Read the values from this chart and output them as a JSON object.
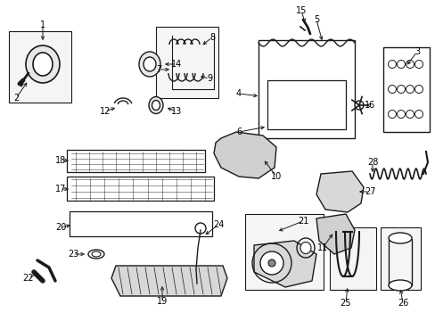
{
  "bg_color": "#ffffff",
  "line_color": "#1a1a1a",
  "text_color": "#000000",
  "fig_width": 4.89,
  "fig_height": 3.6,
  "dpi": 100,
  "font_size": 7.0
}
